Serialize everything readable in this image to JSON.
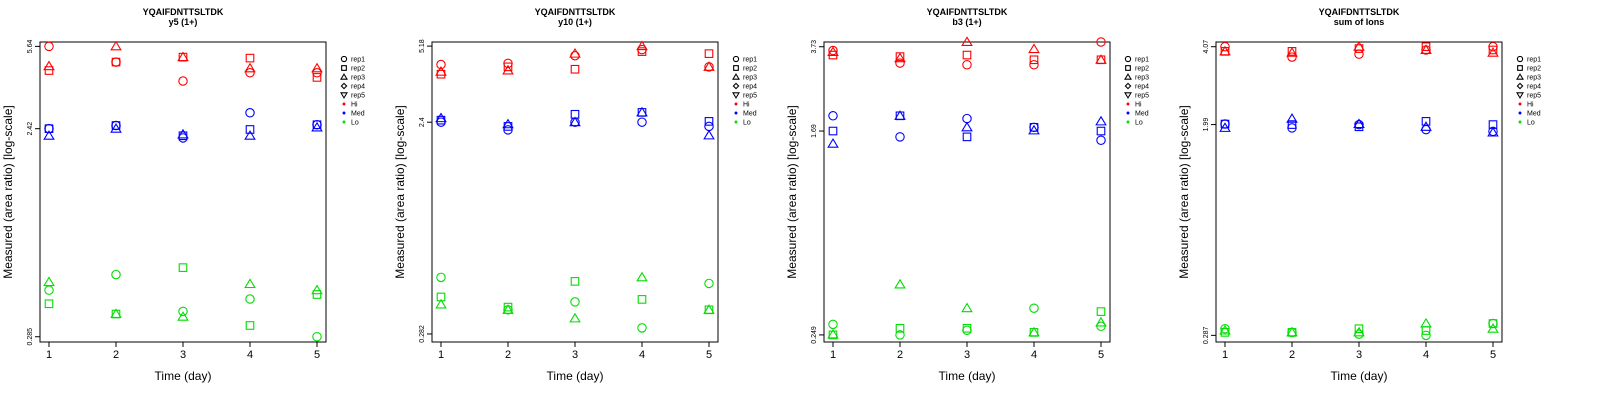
{
  "chart_data": [
    {
      "type": "scatter",
      "peptide": "YQAIFDNTTSLTDK",
      "subtitle": "y5 (1+)",
      "xlabel": "Time (day)",
      "ylabel": "Measured (area ratio) [log-scale]",
      "x_ticks": [
        "1",
        "2",
        "3",
        "4",
        "5"
      ],
      "y_scale": "log",
      "y_ticks": [
        0.285,
        2.42,
        5.64
      ],
      "y_tick_labels": [
        "0.285",
        "2.42",
        "5.64"
      ],
      "ylim": [
        0.27,
        5.9
      ],
      "legend": [
        {
          "label": "rep1",
          "symbol": "circle"
        },
        {
          "label": "rep2",
          "symbol": "square"
        },
        {
          "label": "rep3",
          "symbol": "triangle-up"
        },
        {
          "label": "rep4",
          "symbol": "diamond"
        },
        {
          "label": "rep5",
          "symbol": "triangle-down"
        },
        {
          "label": "Hi",
          "color": "#ff0000"
        },
        {
          "label": "Med",
          "color": "#0000ff"
        },
        {
          "label": "Lo",
          "color": "#00dd00"
        }
      ],
      "series": [
        {
          "group": "Hi",
          "rep": "rep1",
          "symbol": "circle",
          "color": "#ff0000",
          "x": [
            1,
            2,
            3,
            4,
            5
          ],
          "y": [
            5.64,
            4.8,
            3.95,
            4.3,
            4.3
          ]
        },
        {
          "group": "Hi",
          "rep": "rep2",
          "symbol": "square",
          "color": "#ff0000",
          "x": [
            1,
            2,
            3,
            4,
            5
          ],
          "y": [
            4.4,
            4.8,
            5.05,
            5.0,
            4.1
          ]
        },
        {
          "group": "Hi",
          "rep": "rep3",
          "symbol": "triangle-up",
          "color": "#ff0000",
          "x": [
            1,
            2,
            3,
            4,
            5
          ],
          "y": [
            4.6,
            5.64,
            5.05,
            4.5,
            4.5
          ]
        },
        {
          "group": "Med",
          "rep": "rep1",
          "symbol": "circle",
          "color": "#0000ff",
          "x": [
            1,
            2,
            3,
            4,
            5
          ],
          "y": [
            2.42,
            2.5,
            2.2,
            2.85,
            2.52
          ]
        },
        {
          "group": "Med",
          "rep": "rep2",
          "symbol": "square",
          "color": "#0000ff",
          "x": [
            1,
            2,
            3,
            4,
            5
          ],
          "y": [
            2.42,
            2.5,
            2.25,
            2.4,
            2.52
          ]
        },
        {
          "group": "Med",
          "rep": "rep3",
          "symbol": "triangle-up",
          "color": "#0000ff",
          "x": [
            1,
            2,
            3,
            4,
            5
          ],
          "y": [
            2.25,
            2.42,
            2.28,
            2.25,
            2.45
          ]
        },
        {
          "group": "Lo",
          "rep": "rep1",
          "symbol": "circle",
          "color": "#00dd00",
          "x": [
            1,
            2,
            3,
            4,
            5
          ],
          "y": [
            0.46,
            0.54,
            0.37,
            0.42,
            0.285
          ]
        },
        {
          "group": "Lo",
          "rep": "rep2",
          "symbol": "square",
          "color": "#00dd00",
          "x": [
            1,
            2,
            3,
            4,
            5
          ],
          "y": [
            0.4,
            0.36,
            0.58,
            0.32,
            0.44
          ]
        },
        {
          "group": "Lo",
          "rep": "rep3",
          "symbol": "triangle-up",
          "color": "#00dd00",
          "x": [
            1,
            2,
            3,
            4,
            5
          ],
          "y": [
            0.5,
            0.36,
            0.35,
            0.49,
            0.46
          ]
        }
      ]
    },
    {
      "type": "scatter",
      "peptide": "YQAIFDNTTSLTDK",
      "subtitle": "y10 (1+)",
      "xlabel": "Time (day)",
      "ylabel": "Measured (area ratio) [log-scale]",
      "x_ticks": [
        "1",
        "2",
        "3",
        "4",
        "5"
      ],
      "y_scale": "log",
      "y_ticks": [
        0.282,
        2.4,
        5.18
      ],
      "y_tick_labels": [
        "0.282",
        "2.4",
        "5.18"
      ],
      "ylim": [
        0.26,
        5.4
      ],
      "legend": [
        {
          "label": "rep1",
          "symbol": "circle"
        },
        {
          "label": "rep2",
          "symbol": "square"
        },
        {
          "label": "rep3",
          "symbol": "triangle-up"
        },
        {
          "label": "rep4",
          "symbol": "diamond"
        },
        {
          "label": "rep5",
          "symbol": "triangle-down"
        },
        {
          "label": "Hi",
          "color": "#ff0000"
        },
        {
          "label": "Med",
          "color": "#0000ff"
        },
        {
          "label": "Lo",
          "color": "#00dd00"
        }
      ],
      "series": [
        {
          "group": "Hi",
          "rep": "rep1",
          "symbol": "circle",
          "color": "#ff0000",
          "x": [
            1,
            2,
            3,
            4,
            5
          ],
          "y": [
            4.3,
            4.35,
            4.7,
            5.0,
            4.2
          ]
        },
        {
          "group": "Hi",
          "rep": "rep2",
          "symbol": "square",
          "color": "#ff0000",
          "x": [
            1,
            2,
            3,
            4,
            5
          ],
          "y": [
            3.9,
            4.2,
            4.1,
            4.9,
            4.8
          ]
        },
        {
          "group": "Hi",
          "rep": "rep3",
          "symbol": "triangle-up",
          "color": "#ff0000",
          "x": [
            1,
            2,
            3,
            4,
            5
          ],
          "y": [
            4.0,
            4.05,
            4.8,
            5.18,
            4.2
          ]
        },
        {
          "group": "Med",
          "rep": "rep1",
          "symbol": "circle",
          "color": "#0000ff",
          "x": [
            1,
            2,
            3,
            4,
            5
          ],
          "y": [
            2.4,
            2.22,
            2.4,
            2.4,
            2.3
          ]
        },
        {
          "group": "Med",
          "rep": "rep2",
          "symbol": "square",
          "color": "#0000ff",
          "x": [
            1,
            2,
            3,
            4,
            5
          ],
          "y": [
            2.45,
            2.3,
            2.6,
            2.65,
            2.42
          ]
        },
        {
          "group": "Med",
          "rep": "rep3",
          "symbol": "triangle-up",
          "color": "#0000ff",
          "x": [
            1,
            2,
            3,
            4,
            5
          ],
          "y": [
            2.5,
            2.35,
            2.4,
            2.65,
            2.1
          ]
        },
        {
          "group": "Lo",
          "rep": "rep1",
          "symbol": "circle",
          "color": "#00dd00",
          "x": [
            1,
            2,
            3,
            4,
            5
          ],
          "y": [
            0.5,
            0.36,
            0.39,
            0.3,
            0.47
          ]
        },
        {
          "group": "Lo",
          "rep": "rep2",
          "symbol": "square",
          "color": "#00dd00",
          "x": [
            1,
            2,
            3,
            4,
            5
          ],
          "y": [
            0.41,
            0.37,
            0.48,
            0.4,
            0.36
          ]
        },
        {
          "group": "Lo",
          "rep": "rep3",
          "symbol": "triangle-up",
          "color": "#00dd00",
          "x": [
            1,
            2,
            3,
            4,
            5
          ],
          "y": [
            0.38,
            0.36,
            0.33,
            0.5,
            0.36
          ]
        }
      ]
    },
    {
      "type": "scatter",
      "peptide": "YQAIFDNTTSLTDK",
      "subtitle": "b3 (1+)",
      "xlabel": "Time (day)",
      "ylabel": "Measured (area ratio) [log-scale]",
      "x_ticks": [
        "1",
        "2",
        "3",
        "4",
        "5"
      ],
      "y_scale": "log",
      "y_ticks": [
        0.249,
        1.69,
        3.73
      ],
      "y_tick_labels": [
        "0.249",
        "1.69",
        "3.73"
      ],
      "ylim": [
        0.233,
        3.9
      ],
      "legend": [
        {
          "label": "rep1",
          "symbol": "circle"
        },
        {
          "label": "rep2",
          "symbol": "square"
        },
        {
          "label": "rep3",
          "symbol": "triangle-up"
        },
        {
          "label": "rep4",
          "symbol": "diamond"
        },
        {
          "label": "rep5",
          "symbol": "triangle-down"
        },
        {
          "label": "Hi",
          "color": "#ff0000"
        },
        {
          "label": "Med",
          "color": "#0000ff"
        },
        {
          "label": "Lo",
          "color": "#00dd00"
        }
      ],
      "series": [
        {
          "group": "Hi",
          "rep": "rep1",
          "symbol": "circle",
          "color": "#ff0000",
          "x": [
            1,
            2,
            3,
            4,
            5
          ],
          "y": [
            3.6,
            3.2,
            3.15,
            3.15,
            3.9
          ]
        },
        {
          "group": "Hi",
          "rep": "rep2",
          "symbol": "square",
          "color": "#ff0000",
          "x": [
            1,
            2,
            3,
            4,
            5
          ],
          "y": [
            3.45,
            3.4,
            3.45,
            3.3,
            3.3
          ]
        },
        {
          "group": "Hi",
          "rep": "rep3",
          "symbol": "triangle-up",
          "color": "#ff0000",
          "x": [
            1,
            2,
            3,
            4,
            5
          ],
          "y": [
            3.55,
            3.35,
            3.9,
            3.65,
            3.3
          ]
        },
        {
          "group": "Med",
          "rep": "rep1",
          "symbol": "circle",
          "color": "#0000ff",
          "x": [
            1,
            2,
            3,
            4,
            5
          ],
          "y": [
            1.95,
            1.6,
            1.9,
            1.75,
            1.55
          ]
        },
        {
          "group": "Med",
          "rep": "rep2",
          "symbol": "square",
          "color": "#0000ff",
          "x": [
            1,
            2,
            3,
            4,
            5
          ],
          "y": [
            1.69,
            1.95,
            1.6,
            1.75,
            1.69
          ]
        },
        {
          "group": "Med",
          "rep": "rep3",
          "symbol": "triangle-up",
          "color": "#0000ff",
          "x": [
            1,
            2,
            3,
            4,
            5
          ],
          "y": [
            1.5,
            1.95,
            1.75,
            1.7,
            1.85
          ]
        },
        {
          "group": "Lo",
          "rep": "rep1",
          "symbol": "circle",
          "color": "#00dd00",
          "x": [
            1,
            2,
            3,
            4,
            5
          ],
          "y": [
            0.275,
            0.249,
            0.26,
            0.32,
            0.27
          ]
        },
        {
          "group": "Lo",
          "rep": "rep2",
          "symbol": "square",
          "color": "#00dd00",
          "x": [
            1,
            2,
            3,
            4,
            5
          ],
          "y": [
            0.249,
            0.265,
            0.265,
            0.255,
            0.31
          ]
        },
        {
          "group": "Lo",
          "rep": "rep3",
          "symbol": "triangle-up",
          "color": "#00dd00",
          "x": [
            1,
            2,
            3,
            4,
            5
          ],
          "y": [
            0.25,
            0.4,
            0.32,
            0.255,
            0.28
          ]
        }
      ]
    },
    {
      "type": "scatter",
      "peptide": "YQAIFDNTTSLTDK",
      "subtitle": "sum of Ions",
      "xlabel": "Time (day)",
      "ylabel": "Measured (area ratio) [log-scale]",
      "x_ticks": [
        "1",
        "2",
        "3",
        "4",
        "5"
      ],
      "y_scale": "log",
      "y_ticks": [
        0.287,
        1.99,
        4.07
      ],
      "y_tick_labels": [
        "0.287",
        "1.99",
        "4.07"
      ],
      "ylim": [
        0.27,
        4.25
      ],
      "legend": [
        {
          "label": "rep1",
          "symbol": "circle"
        },
        {
          "label": "rep2",
          "symbol": "square"
        },
        {
          "label": "rep3",
          "symbol": "triangle-up"
        },
        {
          "label": "rep4",
          "symbol": "diamond"
        },
        {
          "label": "rep5",
          "symbol": "triangle-down"
        },
        {
          "label": "Hi",
          "color": "#ff0000"
        },
        {
          "label": "Med",
          "color": "#0000ff"
        },
        {
          "label": "Lo",
          "color": "#00dd00"
        }
      ],
      "series": [
        {
          "group": "Hi",
          "rep": "rep1",
          "symbol": "circle",
          "color": "#ff0000",
          "x": [
            1,
            2,
            3,
            4,
            5
          ],
          "y": [
            4.07,
            3.7,
            3.8,
            3.95,
            4.07
          ]
        },
        {
          "group": "Hi",
          "rep": "rep2",
          "symbol": "square",
          "color": "#ff0000",
          "x": [
            1,
            2,
            3,
            4,
            5
          ],
          "y": [
            3.9,
            3.9,
            4.0,
            4.07,
            3.95
          ]
        },
        {
          "group": "Hi",
          "rep": "rep3",
          "symbol": "triangle-up",
          "color": "#ff0000",
          "x": [
            1,
            2,
            3,
            4,
            5
          ],
          "y": [
            3.9,
            3.85,
            4.07,
            3.95,
            3.85
          ]
        },
        {
          "group": "Med",
          "rep": "rep1",
          "symbol": "circle",
          "color": "#0000ff",
          "x": [
            1,
            2,
            3,
            4,
            5
          ],
          "y": [
            2.0,
            1.93,
            1.99,
            1.9,
            1.87
          ]
        },
        {
          "group": "Med",
          "rep": "rep2",
          "symbol": "square",
          "color": "#0000ff",
          "x": [
            1,
            2,
            3,
            4,
            5
          ],
          "y": [
            2.0,
            1.99,
            1.95,
            2.05,
            1.99
          ]
        },
        {
          "group": "Med",
          "rep": "rep3",
          "symbol": "triangle-up",
          "color": "#0000ff",
          "x": [
            1,
            2,
            3,
            4,
            5
          ],
          "y": [
            1.93,
            2.1,
            2.0,
            1.95,
            1.85
          ]
        },
        {
          "group": "Lo",
          "rep": "rep1",
          "symbol": "circle",
          "color": "#00dd00",
          "x": [
            1,
            2,
            3,
            4,
            5
          ],
          "y": [
            0.305,
            0.295,
            0.29,
            0.287,
            0.32
          ]
        },
        {
          "group": "Lo",
          "rep": "rep2",
          "symbol": "square",
          "color": "#00dd00",
          "x": [
            1,
            2,
            3,
            4,
            5
          ],
          "y": [
            0.295,
            0.295,
            0.305,
            0.3,
            0.32
          ]
        },
        {
          "group": "Lo",
          "rep": "rep3",
          "symbol": "triangle-up",
          "color": "#00dd00",
          "x": [
            1,
            2,
            3,
            4,
            5
          ],
          "y": [
            0.3,
            0.295,
            0.295,
            0.32,
            0.305
          ]
        }
      ]
    }
  ]
}
